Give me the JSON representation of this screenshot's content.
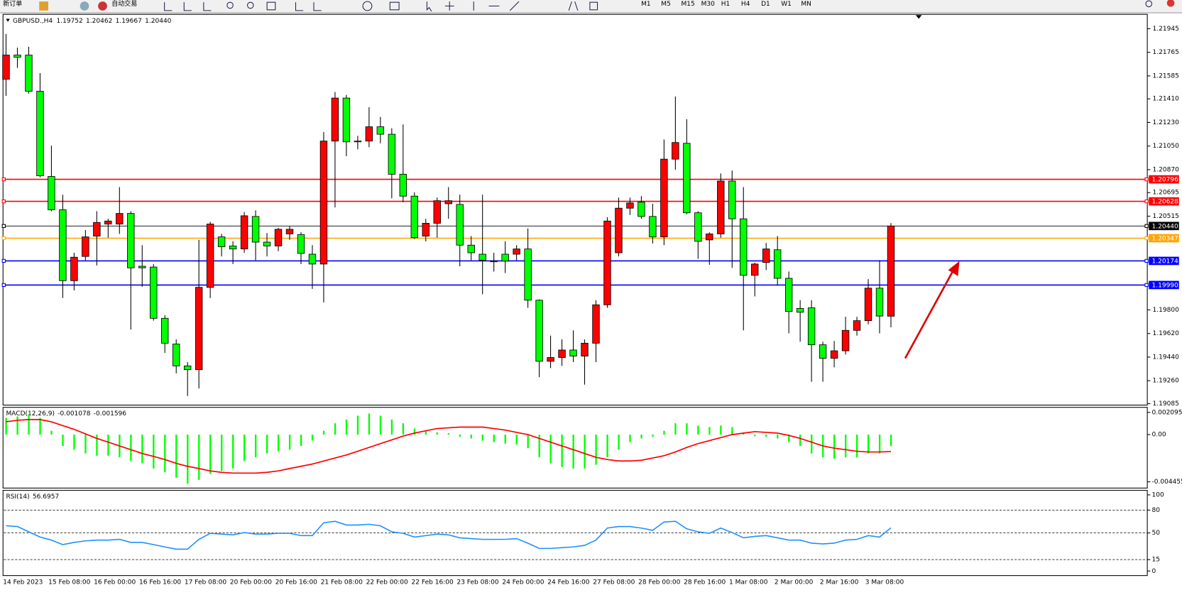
{
  "toolbar": {
    "buttons": [
      "新订单",
      "自动交易"
    ],
    "timeframes": [
      "M1",
      "M5",
      "M15",
      "M30",
      "H1",
      "H4",
      "D1",
      "W1",
      "MN"
    ]
  },
  "chart_data": [
    {
      "type": "candlestick",
      "title": "GBPUSD.,H4",
      "categories": [
        "14 Feb 2023",
        null,
        null,
        null,
        "15 Feb 08:00",
        null,
        null,
        null,
        "16 Feb 00:00",
        null,
        null,
        null,
        "16 Feb 16:00",
        null,
        null,
        null,
        "17 Feb 08:00",
        null,
        null,
        null,
        "20 Feb 00:00",
        null,
        null,
        null,
        "20 Feb 16:00",
        null,
        null,
        null,
        "21 Feb 08:00",
        null,
        null,
        null,
        "22 Feb 00:00",
        null,
        null,
        null,
        "22 Feb 16:00",
        null,
        null,
        null,
        "23 Feb 08:00",
        null,
        null,
        null,
        "24 Feb 00:00",
        null,
        null,
        null,
        "24 Feb 16:00",
        null,
        null,
        null,
        "27 Feb 08:00",
        null,
        null,
        null,
        "28 Feb 00:00",
        null,
        null,
        null,
        "28 Feb 16:00",
        null,
        null,
        null,
        "1 Mar 08:00",
        null,
        null,
        null,
        "2 Mar 00:00",
        null,
        null,
        null,
        "2 Mar 16:00",
        null,
        null,
        null,
        "3 Mar 08:00",
        null,
        null
      ],
      "open": [
        1.2156,
        1.21744,
        1.21744,
        1.21468,
        1.20818,
        1.20564,
        1.20023,
        1.20208,
        1.20363,
        1.20455,
        1.20455,
        1.20536,
        1.20133,
        1.20127,
        1.19736,
        1.1954,
        1.19373,
        1.19344,
        1.19972,
        1.20357,
        1.20288,
        1.20265,
        1.20513,
        1.20317,
        1.20288,
        1.2038,
        1.20375,
        1.20225,
        1.2015,
        1.21088,
        1.21416,
        1.21088,
        1.21088,
        1.21197,
        1.2114,
        1.20835,
        1.20668,
        1.20363,
        1.20461,
        1.2061,
        1.20605,
        1.20294,
        1.20225,
        1.20173,
        1.20225,
        1.20225,
        1.20265,
        1.19874,
        1.19408,
        1.19437,
        1.19494,
        1.19448,
        1.19546,
        1.19839,
        1.20236,
        1.20576,
        1.20622,
        1.20513,
        1.20357,
        1.2095,
        1.21071,
        1.20541,
        1.20334,
        1.2038,
        1.20783,
        1.20495,
        1.20064,
        1.20162,
        1.20259,
        1.20041,
        1.19811,
        1.19816,
        1.19534,
        1.19431,
        1.19488,
        1.19644,
        1.19718,
        1.19966,
        1.19752
      ],
      "high": [
        1.21905,
        1.21801,
        1.21807,
        1.21606,
        1.21053,
        1.20679,
        1.20236,
        1.20409,
        1.20553,
        1.20495,
        1.20737,
        1.20553,
        1.20294,
        1.2015,
        1.19759,
        1.19575,
        1.19402,
        1.20334,
        1.20472,
        1.2038,
        1.20323,
        1.20547,
        1.20559,
        1.20386,
        1.20426,
        1.20438,
        1.20392,
        1.20294,
        1.21157,
        1.21462,
        1.2144,
        1.21128,
        1.21347,
        1.21272,
        1.21186,
        1.21215,
        1.20697,
        1.20495,
        1.20657,
        1.20737,
        1.20679,
        1.20363,
        1.20679,
        1.20236,
        1.20323,
        1.20294,
        1.20421,
        1.1988,
        1.19604,
        1.19575,
        1.19644,
        1.19575,
        1.19874,
        1.20507,
        1.20657,
        1.20657,
        1.20668,
        1.2061,
        1.211,
        1.21428,
        1.21255,
        1.20553,
        1.20392,
        1.20841,
        1.20863,
        1.20737,
        1.2016,
        1.20311,
        1.20363,
        1.20093,
        1.19874,
        1.19874,
        1.19557,
        1.19563,
        1.19747,
        1.19747,
        1.20035,
        1.20179,
        1.20462
      ],
      "low": [
        1.21433,
        1.21646,
        1.2145,
        1.20812,
        1.20553,
        1.19891,
        1.19949,
        1.20179,
        1.20139,
        1.20351,
        1.2038,
        1.1965,
        1.19977,
        1.19718,
        1.19471,
        1.19316,
        1.19143,
        1.19201,
        1.19891,
        1.20208,
        1.2015,
        1.20236,
        1.20179,
        1.20208,
        1.20248,
        1.20334,
        1.2015,
        1.1996,
        1.19857,
        1.20582,
        1.20973,
        1.21025,
        1.21042,
        1.21071,
        1.20651,
        1.20622,
        1.2034,
        1.20323,
        1.20351,
        1.20495,
        1.20133,
        1.20179,
        1.1992,
        1.20093,
        1.20081,
        1.20179,
        1.19816,
        1.19287,
        1.19356,
        1.19373,
        1.19402,
        1.1923,
        1.19402,
        1.19816,
        1.20208,
        1.20524,
        1.20495,
        1.20306,
        1.20294,
        1.20869,
        1.2053,
        1.2019,
        1.20144,
        1.20351,
        1.20121,
        1.19644,
        1.19903,
        1.20104,
        1.19989,
        1.19621,
        1.19557,
        1.19252,
        1.19252,
        1.19362,
        1.1946,
        1.19604,
        1.1969,
        1.19621,
        1.19667
      ],
      "close": [
        1.21744,
        1.21727,
        1.21468,
        1.20823,
        1.20564,
        1.20023,
        1.20202,
        1.20357,
        1.20467,
        1.20478,
        1.20536,
        1.20121,
        1.20121,
        1.19736,
        1.19546,
        1.19373,
        1.19344,
        1.19972,
        1.20455,
        1.20282,
        1.20265,
        1.20518,
        1.20317,
        1.20288,
        1.20415,
        1.20415,
        1.20231,
        1.2015,
        1.21088,
        1.21416,
        1.21082,
        1.21082,
        1.21197,
        1.2114,
        1.20835,
        1.20668,
        1.20351,
        1.20461,
        1.20633,
        1.20633,
        1.20294,
        1.20236,
        1.20179,
        1.20167,
        1.20173,
        1.20265,
        1.19874,
        1.19408,
        1.19437,
        1.19494,
        1.19448,
        1.19546,
        1.19839,
        1.20478,
        1.20576,
        1.20616,
        1.20513,
        1.20357,
        1.2095,
        1.21077,
        1.20541,
        1.20323,
        1.2038,
        1.20783,
        1.20495,
        1.20064,
        1.2015,
        1.20265,
        1.20041,
        1.19788,
        1.19782,
        1.19534,
        1.19431,
        1.19488,
        1.19644,
        1.19718,
        1.19966,
        1.19753,
        1.2044
      ],
      "up_color": "#ff0000",
      "down_color": "#00ff00",
      "ylim": [
        1.19074,
        1.22049
      ],
      "yticks": [
        {
          "value": 1.21945,
          "label": "1.21945"
        },
        {
          "value": 1.21765,
          "label": "1.21765"
        },
        {
          "value": 1.21585,
          "label": "1.21585"
        },
        {
          "value": 1.2141,
          "label": "1.21410"
        },
        {
          "value": 1.2123,
          "label": "1.21230"
        },
        {
          "value": 1.2105,
          "label": "1.21050"
        },
        {
          "value": 1.2087,
          "label": "1.20870"
        },
        {
          "value": 1.20695,
          "label": "1.20695"
        },
        {
          "value": 1.20515,
          "label": "1.20515"
        },
        {
          "value": 1.198,
          "label": "1.19800"
        },
        {
          "value": 1.1962,
          "label": "1.19620"
        },
        {
          "value": 1.1944,
          "label": "1.19440"
        },
        {
          "value": 1.1926,
          "label": "1.19260"
        },
        {
          "value": 1.19085,
          "label": "1.19085"
        }
      ],
      "levels": [
        {
          "value": 1.20796,
          "label": "1.20796",
          "color": "#ff0000"
        },
        {
          "value": 1.20628,
          "label": "1.20628",
          "color": "#ff0000"
        },
        {
          "value": 1.2044,
          "label": "1.20440",
          "color": "#000000"
        },
        {
          "value": 1.20347,
          "label": "1.20347",
          "color": "#ffa500"
        },
        {
          "value": 1.20174,
          "label": "1.20174",
          "color": "#0000ff"
        },
        {
          "value": 1.1999,
          "label": "1.19990",
          "color": "#0000ff"
        }
      ]
    },
    {
      "type": "macd",
      "title": "MACD(12,26,9)",
      "values": [
        0.00157,
        0.00171,
        0.00192,
        0.00157,
        0.00036,
        -0.00107,
        -0.00142,
        -0.00178,
        -0.00199,
        -0.00199,
        -0.00214,
        -0.00249,
        -0.00271,
        -0.0032,
        -0.00356,
        -0.00406,
        -0.00463,
        -0.00427,
        -0.0037,
        -0.00342,
        -0.0032,
        -0.00249,
        -0.00214,
        -0.00178,
        -0.00157,
        -0.00142,
        -0.00107,
        -0.00057,
        0.00036,
        0.00107,
        0.00142,
        0.00178,
        0.00199,
        0.00178,
        0.00142,
        0.00107,
        0.00057,
        0.00036,
        0.00021,
        0.00014,
        -0.00021,
        -0.00036,
        -0.00057,
        -0.00071,
        -0.00085,
        -0.00093,
        -0.00128,
        -0.00214,
        -0.00271,
        -0.00306,
        -0.0032,
        -0.0032,
        -0.00285,
        -0.00214,
        -0.00142,
        -0.00071,
        -0.00036,
        -0.00021,
        0.00036,
        0.00107,
        0.00107,
        0.00085,
        0.00071,
        0.00085,
        0.00071,
        0.00021,
        -0.00014,
        -0.00021,
        -0.00036,
        -0.00071,
        -0.00107,
        -0.00178,
        -0.00214,
        -0.00228,
        -0.00214,
        -0.00214,
        -0.00178,
        -0.00178,
        -0.001078
      ],
      "signal": [
        0.00121,
        0.00135,
        0.00142,
        0.00142,
        0.00121,
        0.00085,
        0.0005,
        7e-05,
        -0.00036,
        -0.00071,
        -0.00107,
        -0.00142,
        -0.00178,
        -0.00206,
        -0.00235,
        -0.00271,
        -0.00299,
        -0.0032,
        -0.00342,
        -0.00356,
        -0.00363,
        -0.00363,
        -0.00363,
        -0.00356,
        -0.00342,
        -0.0032,
        -0.00299,
        -0.00278,
        -0.00249,
        -0.00221,
        -0.00192,
        -0.00157,
        -0.00121,
        -0.00085,
        -0.0005,
        -0.00014,
        0.00014,
        0.00036,
        0.00057,
        0.00064,
        0.00071,
        0.00071,
        0.00071,
        0.00057,
        0.00043,
        0.00021,
        0,
        -0.00036,
        -0.00071,
        -0.00107,
        -0.00142,
        -0.00178,
        -0.00214,
        -0.00235,
        -0.00249,
        -0.00249,
        -0.00242,
        -0.00221,
        -0.00199,
        -0.00164,
        -0.00121,
        -0.00085,
        -0.00057,
        -0.00028,
        0,
        0.00014,
        0.00028,
        0.00021,
        0.00014,
        -7e-05,
        -0.00036,
        -0.00071,
        -0.00107,
        -0.00128,
        -0.00142,
        -0.00157,
        -0.00164,
        -0.00164,
        -0.001596
      ],
      "color": "#00ff00",
      "signal_color": "#ff0000",
      "ylim": [
        -0.0049,
        0.0025
      ],
      "yticks": [
        0.002095,
        {
          "value": 0,
          "label": "0.00"
        },
        -0.004455
      ]
    },
    {
      "type": "line",
      "title": "RSI(14)",
      "values": [
        59.4,
        58.4,
        51.5,
        44.6,
        40.6,
        34.7,
        37.6,
        39.6,
        40.6,
        40.6,
        41.6,
        37.6,
        37.6,
        34.7,
        31.7,
        28.7,
        28.7,
        41.6,
        49.5,
        48.5,
        47.5,
        50.5,
        48.5,
        48.5,
        49.5,
        49.5,
        46.5,
        46.5,
        63.4,
        65.3,
        60.4,
        60.4,
        61.4,
        59.4,
        51.5,
        49.5,
        44.6,
        46.5,
        48.5,
        47.5,
        43.6,
        42.6,
        41.6,
        41.6,
        41.6,
        42.6,
        36.6,
        29.7,
        29.7,
        30.7,
        31.7,
        33.7,
        40.6,
        56.4,
        58.4,
        58.4,
        56.4,
        53.5,
        64.4,
        65.3,
        55.4,
        51.5,
        49.5,
        56.4,
        50.5,
        43.6,
        45.5,
        46.5,
        43.6,
        40.6,
        40.6,
        36.6,
        35.6,
        36.6,
        40.6,
        41.6,
        46.5,
        44.6,
        56.6957
      ],
      "color": "#1e90ff",
      "ylim": [
        0,
        100
      ],
      "yticks": [
        0,
        15,
        50,
        80,
        100
      ],
      "levels": [
        15,
        50,
        80
      ]
    }
  ]
}
